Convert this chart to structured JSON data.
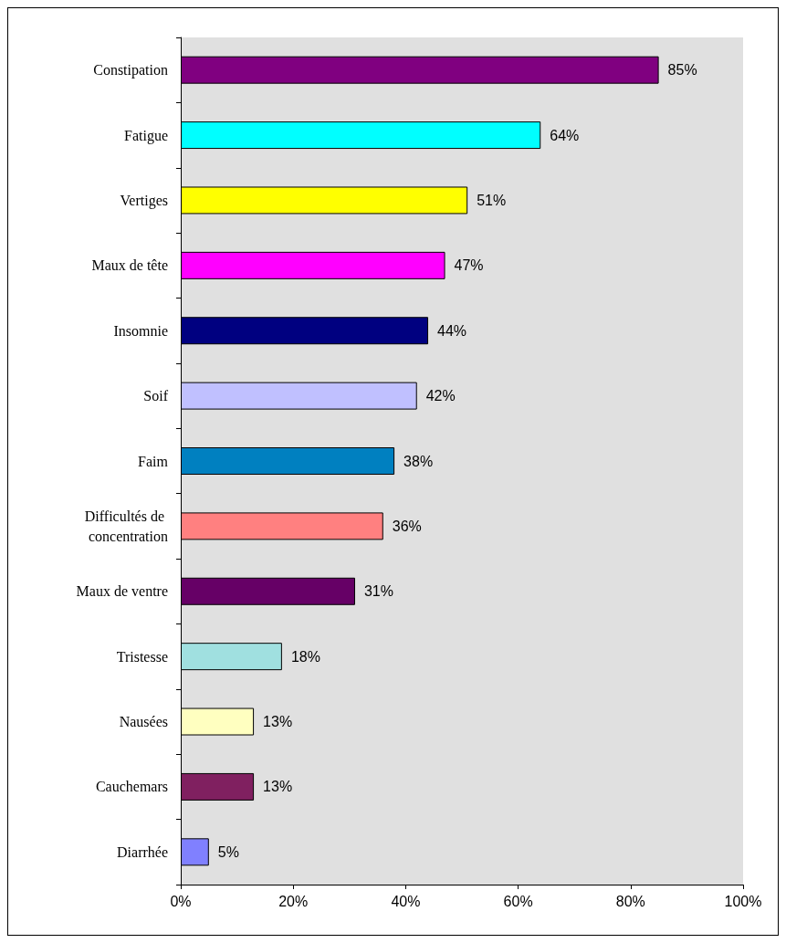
{
  "chart_data": {
    "type": "bar",
    "orientation": "horizontal",
    "categories": [
      "Constipation",
      "Fatigue",
      "Vertiges",
      "Maux de tête",
      "Insomnie",
      "Soif",
      "Faim",
      "Difficultés de concentration",
      "Maux de ventre",
      "Tristesse",
      "Nausées",
      "Cauchemars",
      "Diarrhée"
    ],
    "values": [
      85,
      64,
      51,
      47,
      44,
      42,
      38,
      36,
      31,
      18,
      13,
      13,
      5
    ],
    "value_labels": [
      "85%",
      "64%",
      "51%",
      "47%",
      "44%",
      "42%",
      "38%",
      "36%",
      "31%",
      "18%",
      "13%",
      "13%",
      "5%"
    ],
    "colors": [
      "#800080",
      "#00ffff",
      "#ffff00",
      "#ff00ff",
      "#000080",
      "#c0c0ff",
      "#0080c0",
      "#ff8080",
      "#660066",
      "#a0e0e0",
      "#ffffc0",
      "#802060",
      "#8080ff"
    ],
    "xlim": [
      0,
      100
    ],
    "xticks": [
      {
        "value": 0,
        "label": "0%"
      },
      {
        "value": 20,
        "label": "20%"
      },
      {
        "value": 40,
        "label": "40%"
      },
      {
        "value": 60,
        "label": "60%"
      },
      {
        "value": 80,
        "label": "80%"
      },
      {
        "value": 100,
        "label": "100%"
      }
    ],
    "grid": false
  }
}
